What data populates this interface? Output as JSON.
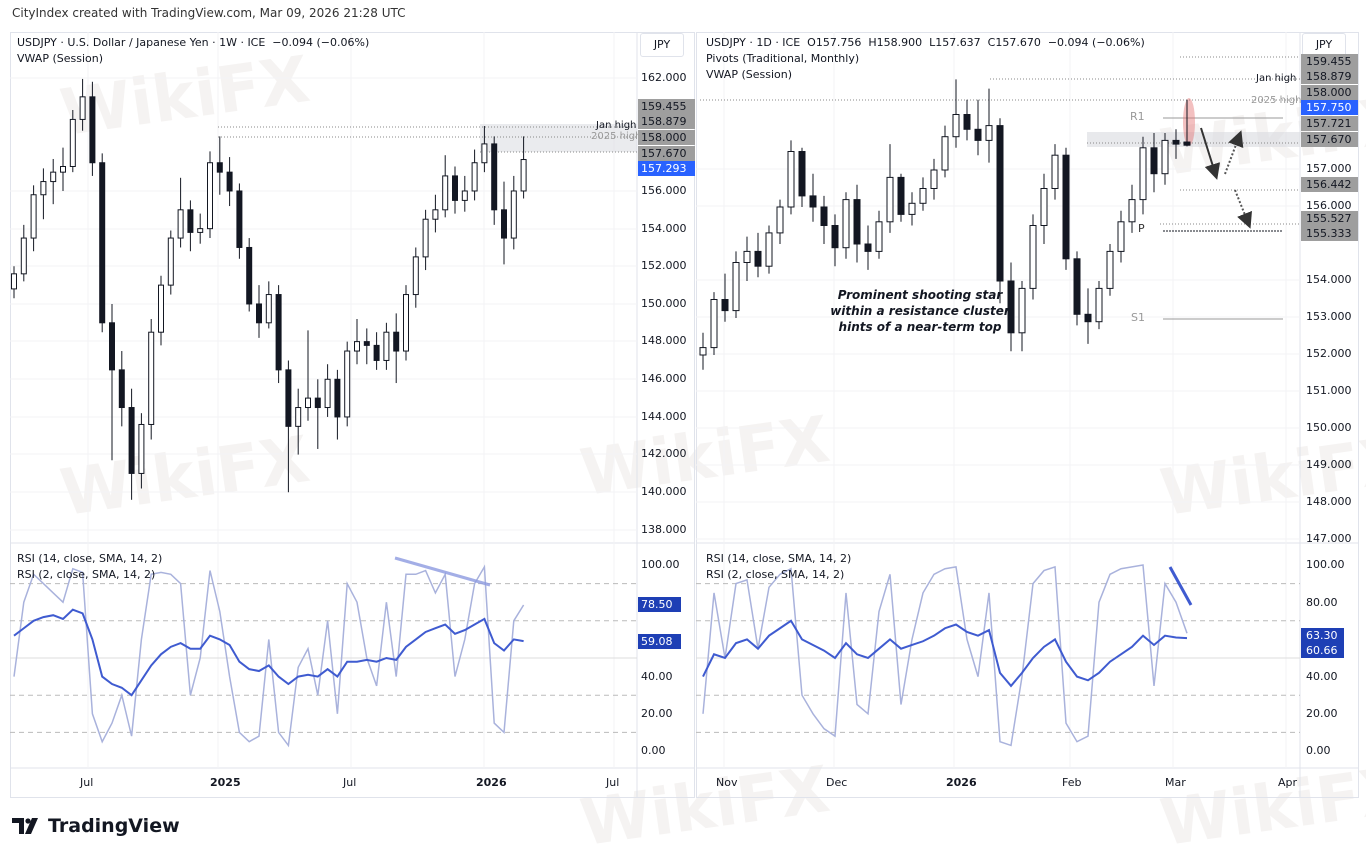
{
  "attribution": "CityIndex created with TradingView.com, Mar 09, 2026 21:28 UTC",
  "footer": {
    "logo_text": "TradingView"
  },
  "watermark": "WikiFX",
  "colors": {
    "up": "#ffffff",
    "down": "#131722",
    "rsi14": "#3f5bd0",
    "rsi2": "#a9b2dc",
    "badge_gray": "#9e9e9e",
    "badge_blue": "#2962ff",
    "highlight": "#e57373"
  },
  "chart_data": [
    {
      "type": "candlestick",
      "title": "USDJPY · U.S. Dollar / Japanese Yen · 1W · ICE  −0.094 (−0.06%)",
      "indicator": "VWAP (Session)",
      "currency": "JPY",
      "ylim": [
        137,
        163.5
      ],
      "y_ticks": [
        "162.000",
        "156.000",
        "154.000",
        "152.000",
        "150.000",
        "148.000",
        "146.000",
        "144.000",
        "142.000",
        "140.000",
        "138.000"
      ],
      "price_badges": [
        {
          "value": "159.455",
          "style": "gray"
        },
        {
          "value": "158.879",
          "style": "gray"
        },
        {
          "value": "158.000",
          "style": "gray"
        },
        {
          "value": "157.670",
          "style": "gray"
        },
        {
          "value": "157.293",
          "style": "blue"
        }
      ],
      "x_ticks": [
        {
          "label": "Jul",
          "bold": false
        },
        {
          "label": "2025",
          "bold": true
        },
        {
          "label": "Jul",
          "bold": false
        },
        {
          "label": "2026",
          "bold": true
        },
        {
          "label": "Jul",
          "bold": false
        }
      ],
      "levels": [
        {
          "label": "Jan high",
          "value": 159.455
        },
        {
          "label": "2025 high",
          "value": 158.879
        },
        {
          "label": "",
          "value": 157.67
        }
      ],
      "candles_ohlc": [
        [
          150.8,
          152.0,
          150.3,
          151.6
        ],
        [
          151.6,
          154.2,
          151.2,
          153.5
        ],
        [
          153.5,
          156.3,
          152.8,
          155.8
        ],
        [
          155.8,
          157.2,
          154.5,
          156.5
        ],
        [
          156.5,
          157.7,
          155.3,
          157.0
        ],
        [
          157.0,
          158.3,
          156.0,
          157.3
        ],
        [
          157.3,
          160.3,
          157.0,
          159.8
        ],
        [
          159.8,
          161.95,
          159.2,
          161.0
        ],
        [
          161.0,
          161.8,
          156.8,
          157.5
        ],
        [
          157.5,
          158.0,
          148.5,
          149.0
        ],
        [
          149.0,
          150.0,
          141.7,
          146.5
        ],
        [
          146.5,
          147.5,
          143.5,
          144.5
        ],
        [
          144.5,
          145.5,
          139.6,
          141.0
        ],
        [
          141.0,
          144.2,
          140.2,
          143.6
        ],
        [
          143.6,
          149.2,
          142.8,
          148.5
        ],
        [
          148.5,
          151.5,
          147.8,
          151.0
        ],
        [
          151.0,
          153.9,
          150.5,
          153.5
        ],
        [
          153.5,
          156.7,
          153.0,
          155.0
        ],
        [
          155.0,
          155.5,
          152.8,
          153.8
        ],
        [
          153.8,
          154.8,
          153.2,
          154.0
        ],
        [
          154.0,
          158.1,
          153.5,
          157.5
        ],
        [
          157.5,
          158.9,
          155.8,
          157.0
        ],
        [
          157.0,
          157.8,
          155.2,
          156.0
        ],
        [
          156.0,
          156.4,
          152.4,
          153.0
        ],
        [
          153.0,
          153.5,
          149.6,
          150.0
        ],
        [
          150.0,
          151.0,
          148.2,
          149.0
        ],
        [
          149.0,
          151.2,
          148.7,
          150.5
        ],
        [
          150.5,
          151.0,
          145.8,
          146.5
        ],
        [
          146.5,
          147.0,
          140.0,
          143.5
        ],
        [
          143.5,
          145.5,
          142.0,
          144.5
        ],
        [
          144.5,
          148.6,
          143.8,
          145.0
        ],
        [
          145.0,
          146.0,
          142.3,
          144.5
        ],
        [
          144.5,
          146.8,
          144.0,
          146.0
        ],
        [
          146.0,
          146.5,
          142.8,
          144.0
        ],
        [
          144.0,
          148.0,
          143.5,
          147.5
        ],
        [
          147.5,
          149.2,
          146.8,
          148.0
        ],
        [
          148.0,
          148.7,
          146.8,
          147.8
        ],
        [
          147.8,
          148.5,
          146.5,
          147.0
        ],
        [
          147.0,
          149.0,
          146.5,
          148.5
        ],
        [
          148.5,
          149.5,
          145.8,
          147.5
        ],
        [
          147.5,
          151.0,
          147.0,
          150.5
        ],
        [
          150.5,
          153.0,
          149.8,
          152.5
        ],
        [
          152.5,
          155.0,
          151.8,
          154.5
        ],
        [
          154.5,
          155.8,
          153.8,
          155.0
        ],
        [
          155.0,
          157.9,
          154.6,
          156.8
        ],
        [
          156.8,
          157.3,
          154.8,
          155.5
        ],
        [
          155.5,
          156.8,
          154.9,
          156.0
        ],
        [
          156.0,
          158.2,
          155.5,
          157.5
        ],
        [
          157.5,
          159.45,
          157.0,
          158.5
        ],
        [
          158.5,
          158.9,
          154.2,
          155.0
        ],
        [
          155.0,
          156.5,
          152.1,
          153.5
        ],
        [
          153.5,
          156.8,
          152.9,
          156.0
        ],
        [
          156.0,
          158.9,
          155.6,
          157.67
        ]
      ],
      "rsi": {
        "label14": "RSI (14, close, SMA, 14, 2)",
        "label2": "RSI (2, close, SMA, 14, 2)",
        "y_ticks": [
          "100.00",
          "40.00",
          "20.00",
          "0.00"
        ],
        "badges": [
          {
            "value": "78.50",
            "style": "navy"
          },
          {
            "value": "59.08",
            "style": "navy"
          }
        ],
        "rsi14": [
          62,
          66,
          70,
          72,
          73,
          71,
          76,
          74,
          60,
          40,
          36,
          34,
          30,
          38,
          46,
          52,
          56,
          58,
          55,
          55,
          62,
          60,
          57,
          48,
          44,
          43,
          46,
          40,
          36,
          40,
          41,
          40,
          44,
          40,
          48,
          48,
          49,
          48,
          50,
          49,
          56,
          60,
          64,
          66,
          68,
          63,
          65,
          68,
          71,
          58,
          54,
          60,
          59.08
        ],
        "rsi2": [
          40,
          80,
          95,
          90,
          85,
          80,
          98,
          96,
          20,
          5,
          15,
          30,
          8,
          60,
          95,
          96,
          95,
          90,
          30,
          50,
          97,
          75,
          40,
          10,
          5,
          8,
          60,
          10,
          3,
          45,
          55,
          30,
          70,
          20,
          90,
          80,
          50,
          35,
          80,
          40,
          95,
          95,
          97,
          85,
          95,
          40,
          60,
          90,
          99,
          15,
          10,
          70,
          78.5
        ]
      }
    },
    {
      "type": "candlestick",
      "title": "USDJPY · 1D · ICE  O157.756  H158.900  L157.637  C157.670  −0.094 (−0.06%)",
      "indicators": [
        "Pivots (Traditional, Monthly)",
        "VWAP (Session)"
      ],
      "currency": "JPY",
      "ylim": [
        146.5,
        160.5
      ],
      "y_ticks": [
        "157.000",
        "156.000",
        "154.000",
        "153.000",
        "152.000",
        "151.000",
        "150.000",
        "149.000",
        "148.000",
        "147.000"
      ],
      "price_badges": [
        {
          "value": "159.455",
          "style": "gray"
        },
        {
          "value": "158.879",
          "style": "gray"
        },
        {
          "value": "158.000",
          "style": "gray"
        },
        {
          "value": "157.750",
          "style": "blue"
        },
        {
          "value": "157.721",
          "style": "gray"
        },
        {
          "value": "157.670",
          "style": "gray"
        },
        {
          "value": "156.442",
          "style": "gray"
        },
        {
          "value": "155.527",
          "style": "gray"
        },
        {
          "value": "155.333",
          "style": "gray"
        }
      ],
      "x_ticks": [
        {
          "label": "Nov",
          "bold": false
        },
        {
          "label": "Dec",
          "bold": false
        },
        {
          "label": "2026",
          "bold": true
        },
        {
          "label": "Feb",
          "bold": false
        },
        {
          "label": "Mar",
          "bold": false
        },
        {
          "label": "Apr",
          "bold": false
        }
      ],
      "levels": [
        {
          "label": "Jan high",
          "value": 159.455
        },
        {
          "label": "2025 high",
          "value": 158.879
        }
      ],
      "pivots": [
        {
          "label": "R1",
          "value": 157.35
        },
        {
          "label": "P",
          "value": 155.35
        },
        {
          "label": "S1",
          "value": 152.95
        }
      ],
      "annotation": [
        "Prominent shooting star",
        "within a resistance cluster",
        "hints of a near-term top"
      ],
      "candles_ohlc": [
        [
          152.0,
          152.6,
          151.6,
          152.2
        ],
        [
          152.2,
          153.7,
          152.0,
          153.5
        ],
        [
          153.5,
          154.2,
          152.9,
          153.2
        ],
        [
          153.2,
          154.8,
          153.0,
          154.5
        ],
        [
          154.5,
          155.2,
          154.0,
          154.8
        ],
        [
          154.8,
          155.3,
          154.1,
          154.4
        ],
        [
          154.4,
          155.5,
          154.2,
          155.3
        ],
        [
          155.3,
          156.2,
          155.0,
          156.0
        ],
        [
          156.0,
          157.8,
          155.8,
          157.5
        ],
        [
          157.5,
          157.6,
          156.0,
          156.3
        ],
        [
          156.3,
          156.9,
          155.6,
          156.0
        ],
        [
          156.0,
          156.3,
          155.0,
          155.5
        ],
        [
          155.5,
          155.8,
          154.4,
          154.9
        ],
        [
          154.9,
          156.4,
          154.6,
          156.2
        ],
        [
          156.2,
          156.6,
          154.5,
          155.0
        ],
        [
          155.0,
          155.5,
          154.3,
          154.8
        ],
        [
          154.8,
          155.9,
          154.6,
          155.6
        ],
        [
          155.6,
          157.7,
          155.3,
          156.8
        ],
        [
          156.8,
          156.9,
          155.6,
          155.8
        ],
        [
          155.8,
          156.4,
          155.5,
          156.1
        ],
        [
          156.1,
          156.8,
          155.9,
          156.5
        ],
        [
          156.5,
          157.3,
          156.2,
          157.0
        ],
        [
          157.0,
          158.2,
          156.8,
          157.9
        ],
        [
          157.9,
          159.45,
          157.6,
          158.5
        ],
        [
          158.5,
          158.9,
          157.8,
          158.1
        ],
        [
          158.1,
          158.9,
          157.4,
          157.8
        ],
        [
          157.8,
          159.2,
          157.2,
          158.2
        ],
        [
          158.2,
          158.4,
          153.4,
          154.0
        ],
        [
          154.0,
          154.5,
          152.1,
          152.6
        ],
        [
          152.6,
          154.0,
          152.1,
          153.8
        ],
        [
          153.8,
          155.8,
          153.5,
          155.5
        ],
        [
          155.5,
          156.9,
          155.0,
          156.5
        ],
        [
          156.5,
          157.7,
          156.2,
          157.4
        ],
        [
          157.4,
          157.6,
          154.3,
          154.6
        ],
        [
          154.6,
          154.8,
          152.8,
          153.1
        ],
        [
          153.1,
          153.8,
          152.3,
          152.9
        ],
        [
          152.9,
          154.0,
          152.7,
          153.8
        ],
        [
          153.8,
          155.0,
          153.6,
          154.8
        ],
        [
          154.8,
          155.9,
          154.5,
          155.6
        ],
        [
          155.6,
          156.6,
          155.3,
          156.2
        ],
        [
          156.2,
          157.9,
          155.8,
          157.6
        ],
        [
          157.6,
          158.0,
          156.4,
          156.9
        ],
        [
          156.9,
          158.0,
          156.6,
          157.8
        ],
        [
          157.8,
          158.1,
          157.3,
          157.7
        ],
        [
          157.756,
          158.9,
          157.637,
          157.67
        ]
      ],
      "rsi": {
        "label14": "RSI (14, close, SMA, 14, 2)",
        "label2": "RSI (2, close, SMA, 14, 2)",
        "y_ticks": [
          "100.00",
          "80.00",
          "40.00",
          "20.00",
          "0.00"
        ],
        "badges": [
          {
            "value": "63.30",
            "style": "navy"
          },
          {
            "value": "60.66",
            "style": "navy"
          }
        ],
        "rsi14": [
          40,
          52,
          50,
          58,
          60,
          55,
          62,
          66,
          70,
          60,
          57,
          54,
          50,
          58,
          52,
          50,
          55,
          60,
          55,
          57,
          59,
          62,
          66,
          68,
          64,
          62,
          65,
          42,
          35,
          42,
          50,
          56,
          60,
          48,
          40,
          38,
          42,
          48,
          52,
          56,
          62,
          57,
          62,
          61,
          60.66
        ],
        "rsi2": [
          20,
          85,
          50,
          90,
          92,
          55,
          88,
          95,
          98,
          30,
          20,
          12,
          8,
          85,
          25,
          20,
          75,
          95,
          25,
          60,
          85,
          95,
          98,
          99,
          60,
          40,
          85,
          5,
          3,
          40,
          90,
          97,
          99,
          15,
          5,
          8,
          80,
          95,
          98,
          99,
          100,
          35,
          90,
          80,
          63.3
        ]
      }
    }
  ]
}
